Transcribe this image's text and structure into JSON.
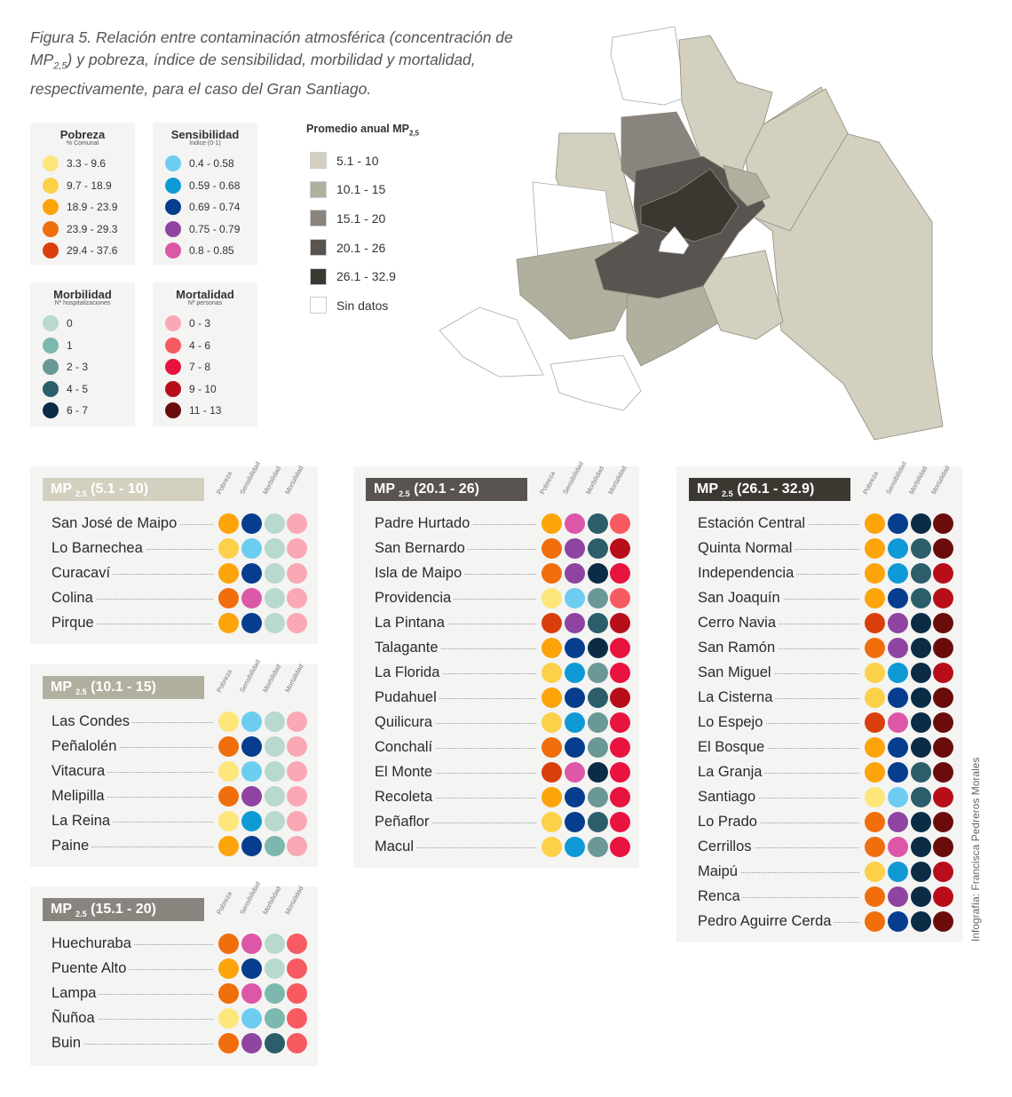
{
  "title": {
    "figure": "Figura 5.",
    "text_before": " Relación entre contaminación atmosférica (concentración de MP",
    "sub": "2,5",
    "text_after": ") y pobreza, índice de sensibilidad, morbilidad y mortalidad, respectivamente,  para el caso del Gran Santiago."
  },
  "legends": [
    {
      "title": "Pobreza",
      "subtitle": "% Comunal",
      "items": [
        "3.3 - 9.6",
        "9.7 - 18.9",
        "18.9 - 23.9",
        "23.9 - 29.3",
        "29.4 - 37.6"
      ],
      "colors": [
        "#fde67a",
        "#fdd04a",
        "#fca40a",
        "#f06e0c",
        "#d93f0c"
      ]
    },
    {
      "title": "Sensibilidad",
      "subtitle": "Índice (0-1)",
      "items": [
        "0.4 - 0.58",
        "0.59 - 0.68",
        "0.69 - 0.74",
        "0.75 - 0.79",
        "0.8 - 0.85"
      ],
      "colors": [
        "#6ccdf0",
        "#0f9ad6",
        "#063d8f",
        "#8e44a0",
        "#dd57a8"
      ]
    },
    {
      "title": "Morbilidad",
      "subtitle": "Nº hospitalizaciones",
      "items": [
        "0",
        "1",
        "2 - 3",
        "4 - 5",
        "6 - 7"
      ],
      "colors": [
        "#b8d9cd",
        "#7cb8ae",
        "#6a9896",
        "#2c5d6a",
        "#0b2c44"
      ]
    },
    {
      "title": "Mortalidad",
      "subtitle": "Nº personas",
      "items": [
        "0 - 3",
        "4 - 6",
        "7 - 8",
        "9 - 10",
        "11 - 13"
      ],
      "colors": [
        "#f9a8b4",
        "#f85a62",
        "#e8133f",
        "#b80e1a",
        "#6b0c0c"
      ]
    }
  ],
  "mp_legend": {
    "title": "Promedio anual MP",
    "sub": "2,5",
    "items": [
      {
        "label": "5.1 - 10",
        "color": "#d3d0bf"
      },
      {
        "label": "10.1 - 15",
        "color": "#b1af9d"
      },
      {
        "label": "15.1 - 20",
        "color": "#8a847e"
      },
      {
        "label": "20.1 - 26",
        "color": "#59544f"
      },
      {
        "label": "26.1 - 32.9",
        "color": "#3a3831"
      },
      {
        "label": "Sin datos",
        "color": "#ffffff"
      }
    ]
  },
  "column_labels": [
    "Pobreza",
    "Sensibilidad",
    "Morbilidad",
    "Mortalidad"
  ],
  "panels": [
    {
      "mp": "MP",
      "sub": "2.5",
      "range": "(5.1 - 10)",
      "color": "#d3d0bf",
      "rows": [
        {
          "name": "San José de Maipo",
          "levels": [
            2,
            2,
            0,
            0
          ]
        },
        {
          "name": "Lo Barnechea",
          "levels": [
            1,
            0,
            0,
            0
          ]
        },
        {
          "name": "Curacaví",
          "levels": [
            2,
            2,
            0,
            0
          ]
        },
        {
          "name": "Colina",
          "levels": [
            3,
            4,
            0,
            0
          ]
        },
        {
          "name": "Pirque",
          "levels": [
            2,
            2,
            0,
            0
          ]
        }
      ]
    },
    {
      "mp": "MP",
      "sub": "2.5",
      "range": "(10.1 - 15)",
      "color": "#b1af9d",
      "rows": [
        {
          "name": "Las Condes",
          "levels": [
            0,
            0,
            0,
            0
          ]
        },
        {
          "name": "Peñalolén",
          "levels": [
            3,
            2,
            0,
            0
          ]
        },
        {
          "name": "Vitacura",
          "levels": [
            0,
            0,
            0,
            0
          ]
        },
        {
          "name": "Melipilla",
          "levels": [
            3,
            3,
            0,
            0
          ]
        },
        {
          "name": "La Reina",
          "levels": [
            0,
            1,
            0,
            0
          ]
        },
        {
          "name": "Paine",
          "levels": [
            2,
            2,
            1,
            0
          ]
        }
      ]
    },
    {
      "mp": "MP",
      "sub": "2.5",
      "range": "(15.1 - 20)",
      "color": "#8a847e",
      "rows": [
        {
          "name": "Huechuraba",
          "levels": [
            3,
            4,
            0,
            1
          ]
        },
        {
          "name": "Puente Alto",
          "levels": [
            2,
            2,
            0,
            1
          ]
        },
        {
          "name": "Lampa",
          "levels": [
            3,
            4,
            1,
            1
          ]
        },
        {
          "name": "Ñuñoa",
          "levels": [
            0,
            0,
            1,
            1
          ]
        },
        {
          "name": "Buin",
          "levels": [
            3,
            3,
            3,
            1
          ]
        }
      ]
    },
    {
      "mp": "MP",
      "sub": "2.5",
      "range": "(20.1 - 26)",
      "color": "#59544f",
      "rows": [
        {
          "name": "Padre Hurtado",
          "levels": [
            2,
            4,
            3,
            1
          ]
        },
        {
          "name": "San Bernardo",
          "levels": [
            3,
            3,
            3,
            3
          ]
        },
        {
          "name": "Isla de Maipo",
          "levels": [
            3,
            3,
            4,
            2
          ]
        },
        {
          "name": "Providencia",
          "levels": [
            0,
            0,
            2,
            1
          ]
        },
        {
          "name": "La Pintana",
          "levels": [
            4,
            3,
            3,
            3
          ]
        },
        {
          "name": "Talagante",
          "levels": [
            2,
            2,
            4,
            2
          ]
        },
        {
          "name": "La Florida",
          "levels": [
            1,
            1,
            2,
            2
          ]
        },
        {
          "name": "Pudahuel",
          "levels": [
            2,
            2,
            3,
            3
          ]
        },
        {
          "name": "Quilicura",
          "levels": [
            1,
            1,
            2,
            2
          ]
        },
        {
          "name": "Conchalí",
          "levels": [
            3,
            2,
            2,
            2
          ]
        },
        {
          "name": "El Monte",
          "levels": [
            4,
            4,
            4,
            2
          ]
        },
        {
          "name": "Recoleta",
          "levels": [
            2,
            2,
            2,
            2
          ]
        },
        {
          "name": "Peñaflor",
          "levels": [
            1,
            2,
            3,
            2
          ]
        },
        {
          "name": "Macul",
          "levels": [
            1,
            1,
            2,
            2
          ]
        }
      ]
    },
    {
      "mp": "MP",
      "sub": "2.5",
      "range": "(26.1 - 32.9)",
      "color": "#3a3831",
      "rows": [
        {
          "name": "Estación Central",
          "levels": [
            2,
            2,
            4,
            4
          ]
        },
        {
          "name": "Quinta Normal",
          "levels": [
            2,
            1,
            3,
            4
          ]
        },
        {
          "name": "Independencia",
          "levels": [
            2,
            1,
            3,
            3
          ]
        },
        {
          "name": "San Joaquín",
          "levels": [
            2,
            2,
            3,
            3
          ]
        },
        {
          "name": "Cerro Navia",
          "levels": [
            4,
            3,
            4,
            4
          ]
        },
        {
          "name": "San Ramón",
          "levels": [
            3,
            3,
            4,
            4
          ]
        },
        {
          "name": "San Miguel",
          "levels": [
            1,
            1,
            4,
            3
          ]
        },
        {
          "name": "La Cisterna",
          "levels": [
            1,
            2,
            4,
            4
          ]
        },
        {
          "name": "Lo Espejo",
          "levels": [
            4,
            4,
            4,
            4
          ]
        },
        {
          "name": "El Bosque",
          "levels": [
            2,
            2,
            4,
            4
          ]
        },
        {
          "name": "La Granja",
          "levels": [
            2,
            2,
            3,
            4
          ]
        },
        {
          "name": "Santiago",
          "levels": [
            0,
            0,
            3,
            3
          ]
        },
        {
          "name": "Lo Prado",
          "levels": [
            3,
            3,
            4,
            4
          ]
        },
        {
          "name": "Cerrillos",
          "levels": [
            3,
            4,
            4,
            4
          ]
        },
        {
          "name": "Maipú",
          "levels": [
            1,
            1,
            4,
            3
          ]
        },
        {
          "name": "Renca",
          "levels": [
            3,
            3,
            4,
            3
          ]
        },
        {
          "name": "Pedro Aguirre Cerda",
          "levels": [
            3,
            2,
            4,
            4
          ]
        }
      ]
    }
  ],
  "credit": "Infografía: Francisca Pedreros Morales"
}
